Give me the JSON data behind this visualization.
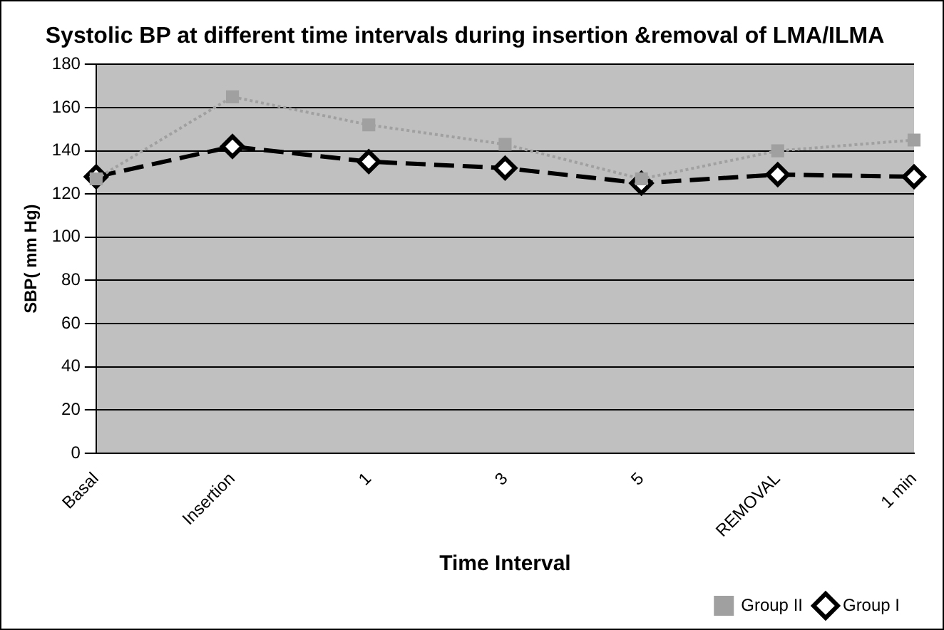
{
  "chart_data": {
    "type": "line",
    "title": "Systolic BP at different time intervals during insertion &removal of LMA/ILMA",
    "xlabel": "Time Interval",
    "ylabel": "SBP( mm Hg)",
    "categories": [
      "Basal",
      "Insertion",
      "1",
      "3",
      "5",
      "REMOVAL",
      "1 min"
    ],
    "series": [
      {
        "name": "Group I",
        "color": "#000000",
        "marker": "diamond",
        "line_style": "dashed",
        "values": [
          128,
          142,
          135,
          132,
          125,
          129,
          128
        ]
      },
      {
        "name": "Group II",
        "color": "#a0a0a0",
        "marker": "square",
        "line_style": "dotted",
        "values": [
          127,
          165,
          152,
          143,
          127,
          140,
          145
        ]
      }
    ],
    "ylim": [
      0,
      180
    ],
    "yticks": [
      0,
      20,
      40,
      60,
      80,
      100,
      120,
      140,
      160,
      180
    ],
    "grid": "y",
    "legend": "bottom right"
  }
}
